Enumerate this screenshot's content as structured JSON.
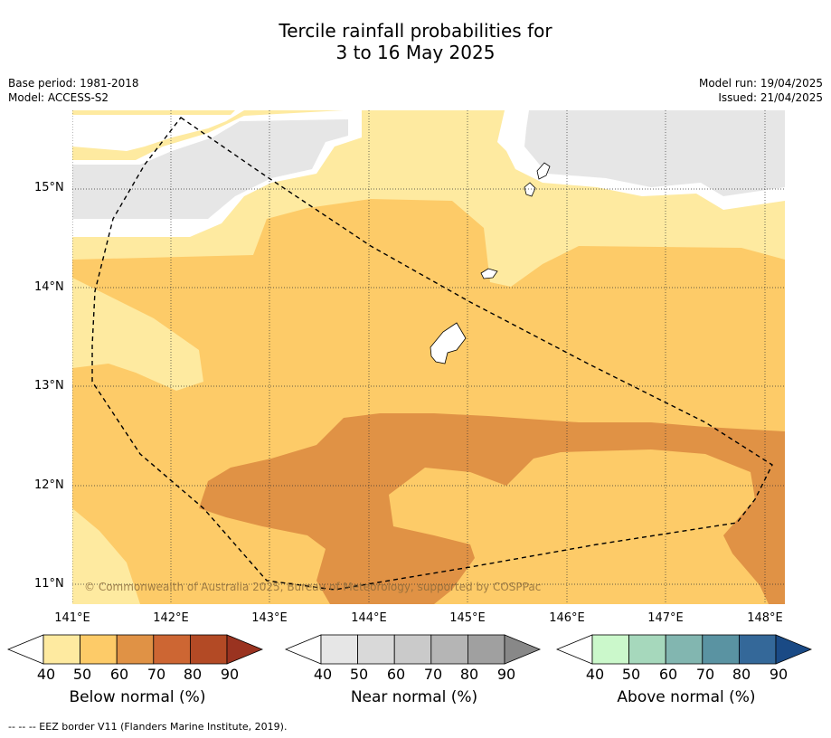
{
  "title_line1": "Tercile rainfall probabilities for",
  "title_line2": "3 to 16 May 2025",
  "meta_left": {
    "base_period": "Base period: 1981-2018",
    "model": "Model: ACCESS-S2"
  },
  "meta_right": {
    "model_run": "Model run: 19/04/2025",
    "issued": "Issued: 21/04/2025"
  },
  "lat_labels": [
    "15°N",
    "14°N",
    "13°N",
    "12°N",
    "11°N"
  ],
  "lon_labels": [
    "141°E",
    "142°E",
    "143°E",
    "144°E",
    "145°E",
    "146°E",
    "147°E",
    "148°E"
  ],
  "copyright": "© Commonwealth of Australia 2025, Bureau of Meteorology, supported by COSPPac",
  "colorbars": [
    {
      "label": "Below normal (%)",
      "colors": [
        "#ffffff",
        "#feeaa0",
        "#fdcb68",
        "#e09245",
        "#cd6633",
        "#b34a25",
        "#9a3320"
      ],
      "ticks": [
        "40",
        "50",
        "60",
        "70",
        "80",
        "90"
      ]
    },
    {
      "label": "Near normal (%)",
      "colors": [
        "#ffffff",
        "#e6e6e6",
        "#d9d9d9",
        "#cacaca",
        "#b5b5b5",
        "#a0a0a0",
        "#888888"
      ],
      "ticks": [
        "40",
        "50",
        "60",
        "70",
        "80",
        "90"
      ]
    },
    {
      "label": "Above normal (%)",
      "colors": [
        "#ffffff",
        "#cbf8cb",
        "#a6d8bc",
        "#82b6b0",
        "#5a93a2",
        "#346899",
        "#1a4a85"
      ],
      "ticks": [
        "40",
        "50",
        "60",
        "70",
        "80",
        "90"
      ]
    }
  ],
  "footnote": "--  --  -- EEZ border V11 (Flanders Marine Institute, 2019)."
}
